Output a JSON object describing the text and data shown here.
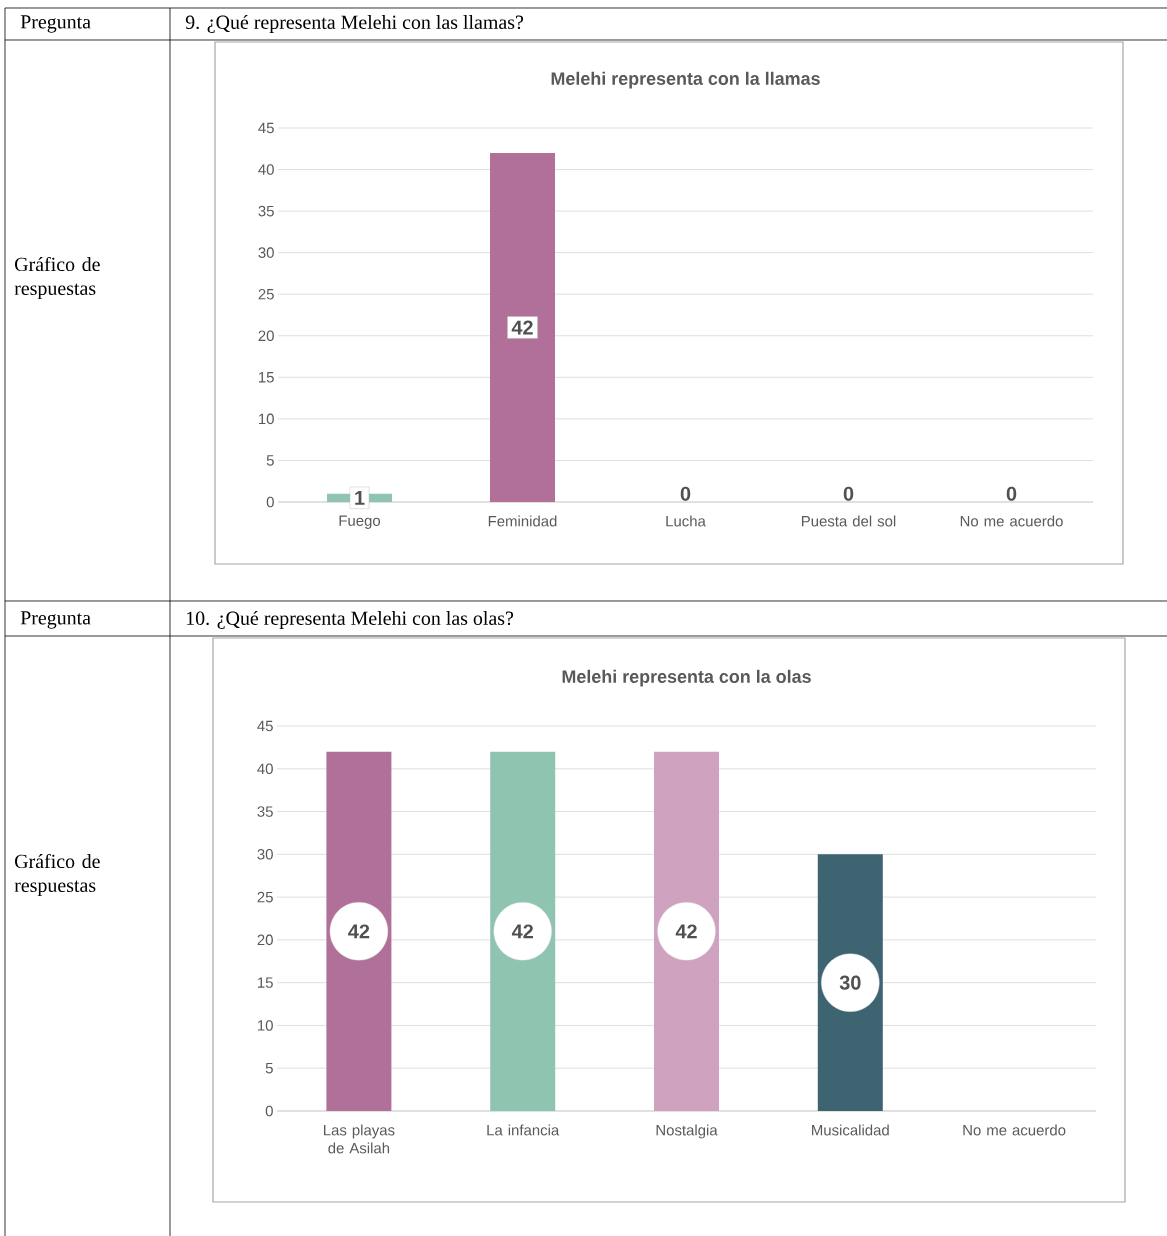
{
  "chart_data": [
    {
      "type": "bar",
      "title": "Melehi representa con la llamas",
      "categories": [
        "Fuego",
        "Feminidad",
        "Lucha",
        "Puesta del sol",
        "No me acuerdo"
      ],
      "values": [
        1,
        42,
        0,
        0,
        0
      ],
      "colors": [
        "#8fc4b1",
        "#b07099",
        "#8fc4b1",
        "#8fc4b1",
        "#8fc4b1"
      ],
      "ylim": [
        0,
        45
      ],
      "yticks": [
        0,
        5,
        10,
        15,
        20,
        25,
        30,
        35,
        40,
        45
      ],
      "grid": "y",
      "data_labels": true,
      "annotations": [
        "Pregunta",
        "9. ¿Qué representa Melehi con las llamas?",
        "Gráfico de respuestas"
      ]
    },
    {
      "type": "bar",
      "title": "Melehi representa con la olas",
      "categories": [
        "Las playas de Asilah",
        "La infancia",
        "Nostalgia",
        "Musicalidad",
        "No me acuerdo"
      ],
      "values": [
        42,
        42,
        42,
        30,
        0
      ],
      "colors": [
        "#b07099",
        "#8fc4b1",
        "#cfa3c0",
        "#3e6472",
        "#8fc4b1"
      ],
      "ylim": [
        0,
        45
      ],
      "yticks": [
        0,
        5,
        10,
        15,
        20,
        25,
        30,
        35,
        40,
        45
      ],
      "grid": "y",
      "value_labels": [
        "42",
        "42",
        "42",
        "30",
        null
      ],
      "annotations": [
        "Pregunta",
        "10. ¿Qué representa Melehi con las olas?",
        "Gráfico de respuestas"
      ]
    }
  ]
}
